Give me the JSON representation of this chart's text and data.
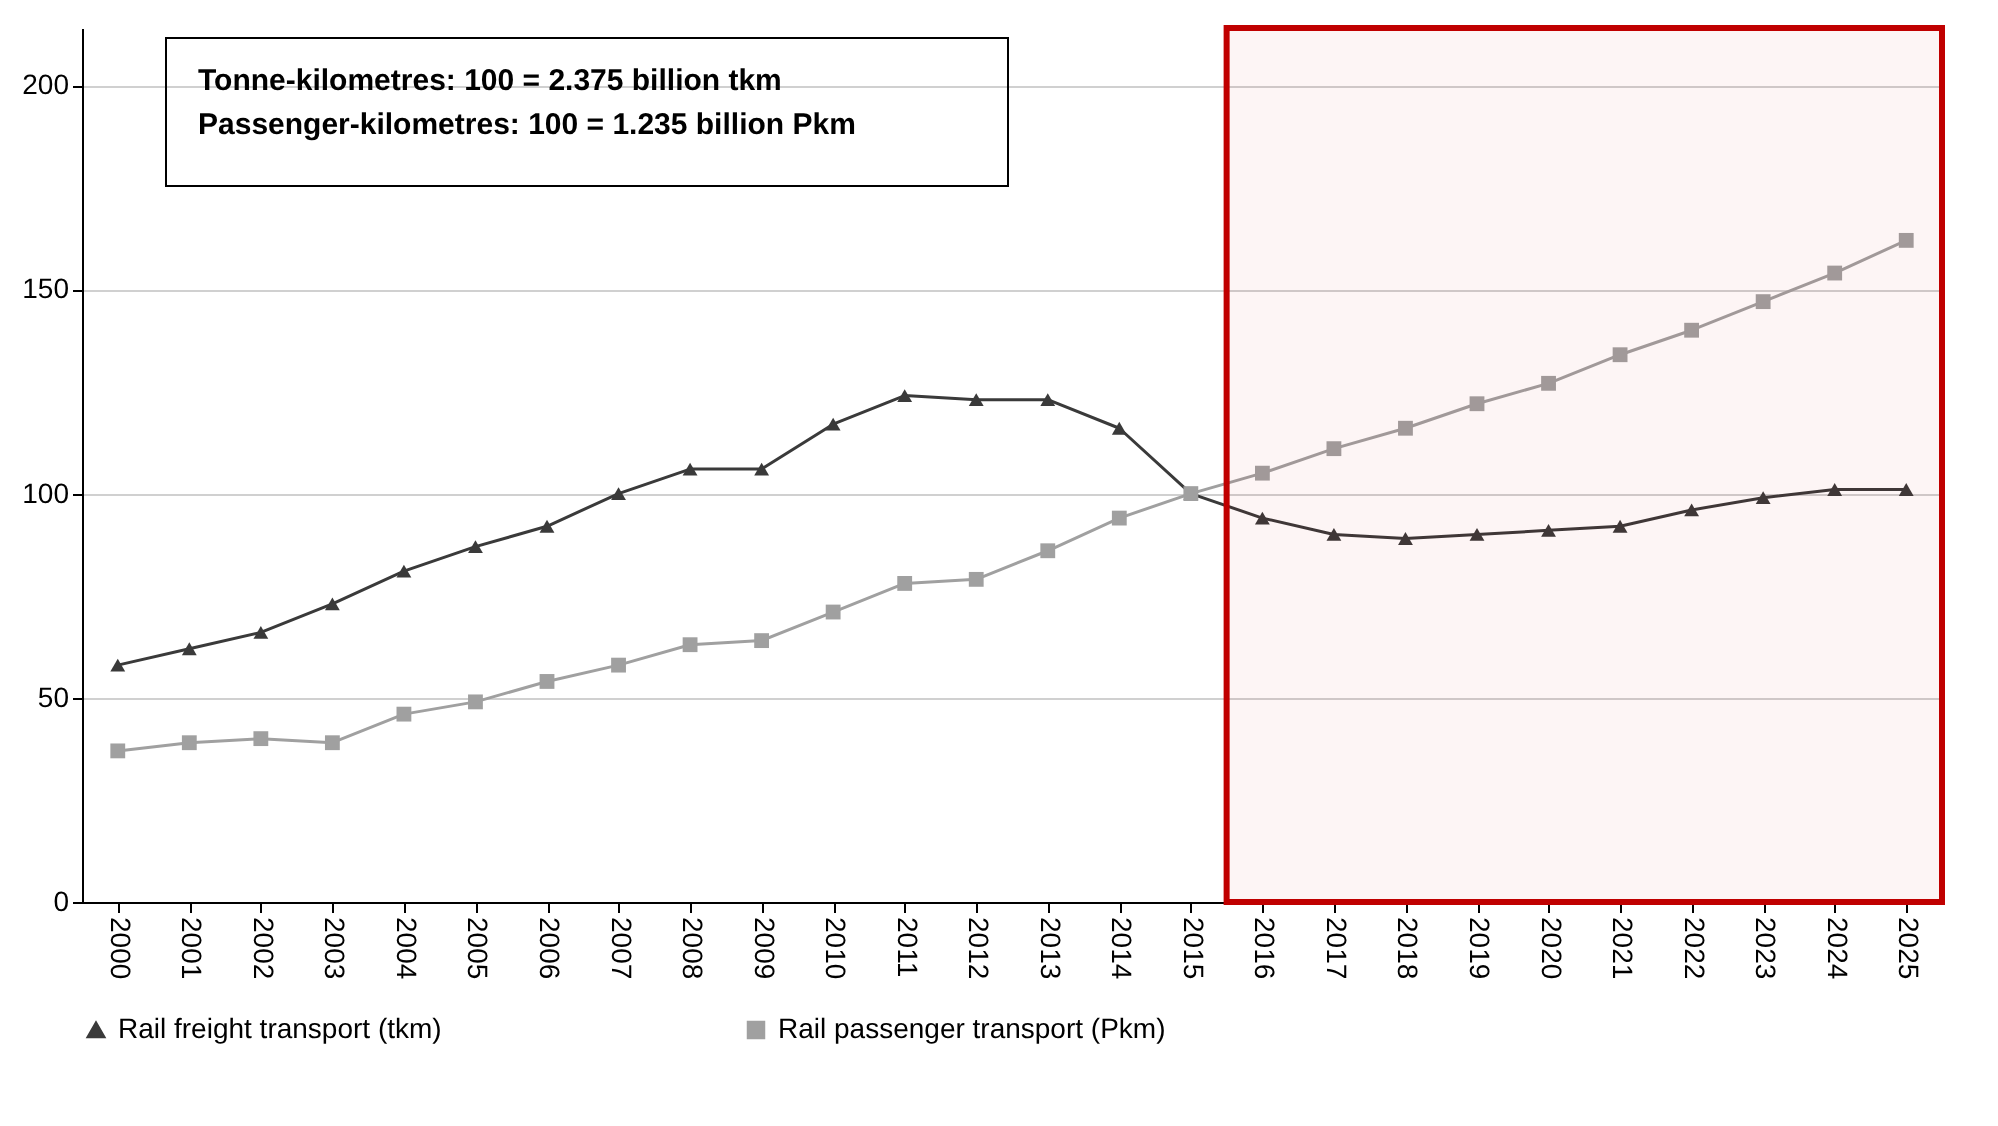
{
  "chart_data": {
    "type": "line",
    "categories": [
      "2000",
      "2001",
      "2002",
      "2003",
      "2004",
      "2005",
      "2006",
      "2007",
      "2008",
      "2009",
      "2010",
      "2011",
      "2012",
      "2013",
      "2014",
      "2015",
      "2016",
      "2017",
      "2018",
      "2019",
      "2020",
      "2021",
      "2022",
      "2023",
      "2024",
      "2025"
    ],
    "series": [
      {
        "name": "Rail freight transport (tkm)",
        "color": "#3a3a3a",
        "marker": "triangle",
        "values": [
          58,
          62,
          66,
          73,
          81,
          87,
          92,
          100,
          106,
          106,
          117,
          124,
          123,
          123,
          116,
          100,
          94,
          90,
          89,
          90,
          91,
          92,
          96,
          99,
          101,
          101
        ]
      },
      {
        "name": "Rail passenger transport (Pkm)",
        "color": "#a0a0a0",
        "marker": "square",
        "values": [
          37,
          39,
          40,
          39,
          46,
          49,
          54,
          58,
          63,
          64,
          71,
          78,
          79,
          86,
          94,
          100,
          105,
          111,
          116,
          122,
          127,
          134,
          140,
          147,
          154,
          162
        ]
      }
    ],
    "ylim": [
      0,
      214
    ],
    "yticks": [
      0,
      50,
      100,
      150,
      200
    ],
    "grid": "y",
    "legend": "bottom",
    "line_style": "solid",
    "bands": [
      {
        "axis": "x",
        "from": "2016",
        "to": "2025",
        "color": "#c00000"
      }
    ],
    "annotations": [
      "Tonne-kilometres:     100 = 2.375 billion tkm",
      "Passenger-kilometres:  100 = 1.235 billion Pkm"
    ]
  }
}
